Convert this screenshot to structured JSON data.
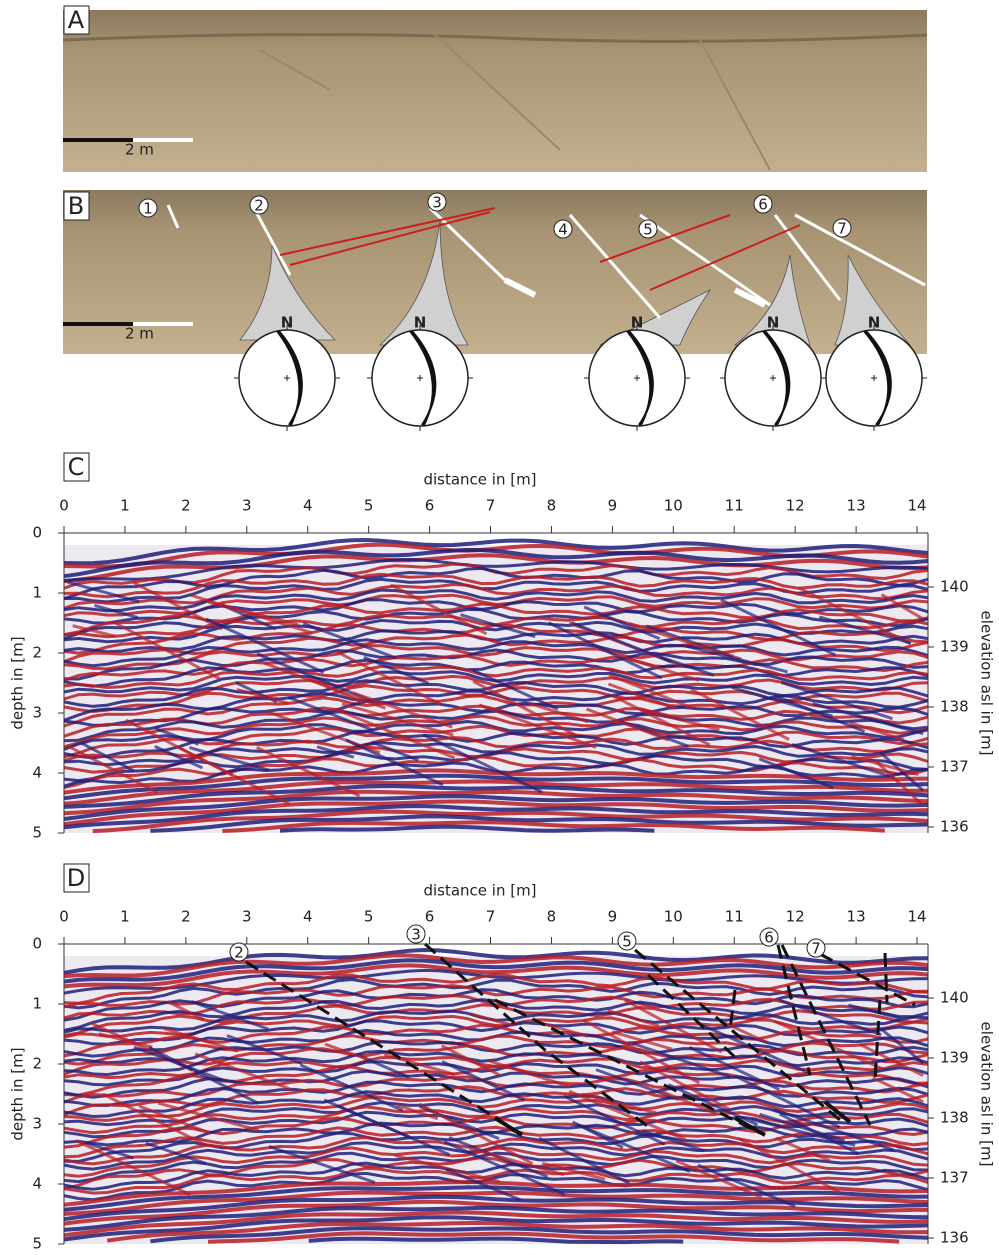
{
  "panels": [
    {
      "label": "A",
      "scale_bar": "2 m"
    },
    {
      "label": "B",
      "scale_bar": "2 m",
      "faults": [
        "1",
        "2",
        "3",
        "4",
        "5",
        "6",
        "7"
      ],
      "stereonets": [
        "N",
        "N",
        "N",
        "N",
        "N"
      ]
    },
    {
      "label": "C",
      "x_label": "distance in [m]",
      "y_label": "depth in [m]",
      "y2_label": "elevation asl in [m]",
      "xlim": [
        0,
        14.18
      ],
      "xticks": [
        0,
        1,
        2,
        3,
        4,
        5,
        6,
        7,
        8,
        9,
        10,
        11,
        12,
        13,
        14
      ],
      "ylim": [
        0,
        5
      ],
      "yticks": [
        0,
        1,
        2,
        3,
        4,
        5
      ],
      "y2lim": [
        140.9,
        135.9
      ],
      "y2ticks": [
        136,
        137,
        138,
        139,
        140
      ]
    },
    {
      "label": "D",
      "x_label": "distance in [m]",
      "y_label": "depth in [m]",
      "y2_label": "elevation asl in [m]",
      "xlim": [
        0,
        14.18
      ],
      "xticks": [
        0,
        1,
        2,
        3,
        4,
        5,
        6,
        7,
        8,
        9,
        10,
        11,
        12,
        13,
        14
      ],
      "ylim": [
        0,
        5
      ],
      "yticks": [
        0,
        1,
        2,
        3,
        4,
        5
      ],
      "y2lim": [
        140.9,
        135.9
      ],
      "y2ticks": [
        136,
        137,
        138,
        139,
        140
      ],
      "faults": [
        "2",
        "3",
        "5",
        "6",
        "7"
      ]
    }
  ]
}
